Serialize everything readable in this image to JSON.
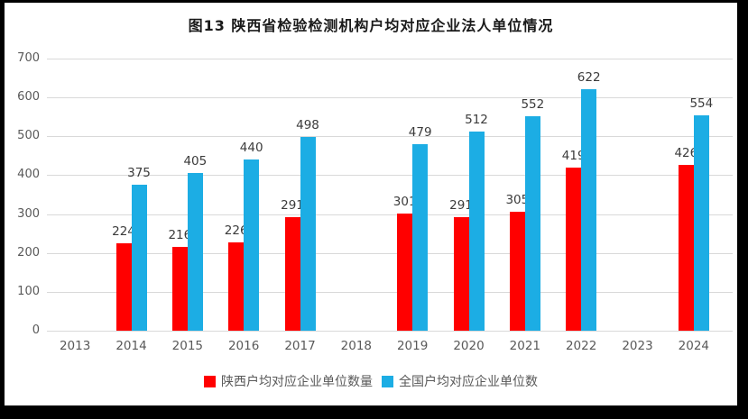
{
  "chart_data": {
    "type": "bar",
    "title": "图13  陕西省检验检测机构户均对应企业法人单位情况",
    "categories": [
      "2013",
      "2014",
      "2015",
      "2016",
      "2017",
      "2018",
      "2019",
      "2020",
      "2021",
      "2022",
      "2023",
      "2024"
    ],
    "series": [
      {
        "name": "陕西户均对应企业单位数量",
        "color": "#ff0000",
        "values": [
          null,
          224,
          216,
          226,
          291,
          null,
          301,
          291,
          305,
          419,
          null,
          426
        ]
      },
      {
        "name": "全国户均对应企业单位数",
        "color": "#1cade4",
        "values": [
          null,
          375,
          405,
          440,
          498,
          null,
          479,
          512,
          552,
          622,
          null,
          554
        ]
      }
    ],
    "ylim": [
      0,
      700
    ],
    "ytick_step": 100,
    "yticks": [
      "0",
      "100",
      "200",
      "300",
      "400",
      "500",
      "600",
      "700"
    ],
    "grid": true,
    "legend_position": "bottom",
    "xlabel": "",
    "ylabel": ""
  },
  "colors": {
    "background": "#ffffff",
    "frame": "#000000",
    "gridline": "#d9d9d9",
    "axis_text": "#595959",
    "value_label_text": "#3b3b3b"
  }
}
